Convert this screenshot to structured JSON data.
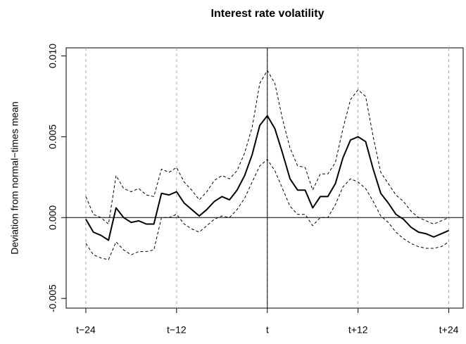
{
  "chart_data": {
    "type": "line",
    "title": "Interest rate volatility",
    "y_label": "Deviation from normal−times mean",
    "x": [
      -24,
      -23,
      -22,
      -21,
      -20,
      -19,
      -18,
      -17,
      -16,
      -15,
      -14,
      -13,
      -12,
      -11,
      -10,
      -9,
      -8,
      -7,
      -6,
      -5,
      -4,
      -3,
      -2,
      -1,
      0,
      1,
      2,
      3,
      4,
      5,
      6,
      7,
      8,
      9,
      10,
      11,
      12,
      13,
      14,
      15,
      16,
      17,
      18,
      19,
      20,
      21,
      22,
      23,
      24
    ],
    "series": [
      {
        "color": "#000000",
        "style": "solid",
        "width": 2,
        "values": [
          -0.0001,
          -0.0009,
          -0.0011,
          -0.0014,
          0.0006,
          0.0,
          -0.0003,
          -0.0002,
          -0.0004,
          -0.0004,
          0.0015,
          0.0014,
          0.0016,
          0.0009,
          0.0005,
          0.0001,
          0.0005,
          0.001,
          0.0013,
          0.0011,
          0.0017,
          0.0026,
          0.0039,
          0.0057,
          0.0063,
          0.0055,
          0.004,
          0.0024,
          0.0017,
          0.0017,
          0.0006,
          0.0013,
          0.0013,
          0.0021,
          0.0037,
          0.0048,
          0.005,
          0.0047,
          0.003,
          0.0015,
          0.0009,
          0.0002,
          -0.0001,
          -0.0006,
          -0.0009,
          -0.001,
          -0.0012,
          -0.001,
          -0.0008
        ]
      },
      {
        "color": "#000000",
        "style": "dashed",
        "width": 1,
        "values": [
          0.0013,
          0.0002,
          0.0,
          -0.0004,
          0.0026,
          0.0018,
          0.0016,
          0.0018,
          0.0014,
          0.0013,
          0.003,
          0.0028,
          0.0031,
          0.0022,
          0.0017,
          0.0011,
          0.0016,
          0.0023,
          0.0026,
          0.0024,
          0.0029,
          0.004,
          0.0056,
          0.0083,
          0.0091,
          0.0083,
          0.0061,
          0.0043,
          0.0032,
          0.0031,
          0.0017,
          0.0027,
          0.0027,
          0.0034,
          0.0055,
          0.0073,
          0.0079,
          0.0075,
          0.005,
          0.0028,
          0.0021,
          0.0014,
          0.001,
          0.0004,
          0.0,
          -0.0002,
          -0.0004,
          -0.0002,
          0.0
        ]
      },
      {
        "color": "#000000",
        "style": "dashed",
        "width": 1,
        "values": [
          -0.0016,
          -0.0023,
          -0.0025,
          -0.0026,
          -0.0015,
          -0.002,
          -0.0023,
          -0.0021,
          -0.0021,
          -0.002,
          0.0,
          0.0,
          0.0002,
          -0.0004,
          -0.0007,
          -0.0009,
          -0.0005,
          -0.0001,
          0.0001,
          0.0,
          0.0005,
          0.0012,
          0.0022,
          0.0032,
          0.0036,
          0.0029,
          0.0018,
          0.0007,
          0.0002,
          0.0002,
          -0.0005,
          0.0,
          0.0,
          0.0008,
          0.0019,
          0.0024,
          0.0022,
          0.0018,
          0.001,
          0.0001,
          -0.0003,
          -0.0009,
          -0.0013,
          -0.0016,
          -0.0018,
          -0.0019,
          -0.0019,
          -0.0018,
          -0.0015
        ]
      }
    ],
    "xlim": [
      -26.6,
      25.9
    ],
    "ylim": [
      -0.0056,
      0.0105
    ],
    "xticks": [
      {
        "value": -24,
        "label": "t−24"
      },
      {
        "value": -12,
        "label": "t−12"
      },
      {
        "value": 0,
        "label": "t"
      },
      {
        "value": 12,
        "label": "t+12"
      },
      {
        "value": 24,
        "label": "t+24"
      }
    ],
    "yticks": [
      -0.005,
      {
        "value": 0,
        "label": "0.000"
      },
      0.005,
      {
        "value": 0.01,
        "label": "0.010"
      }
    ],
    "grid": "x",
    "hline": 0,
    "vline": 0
  }
}
